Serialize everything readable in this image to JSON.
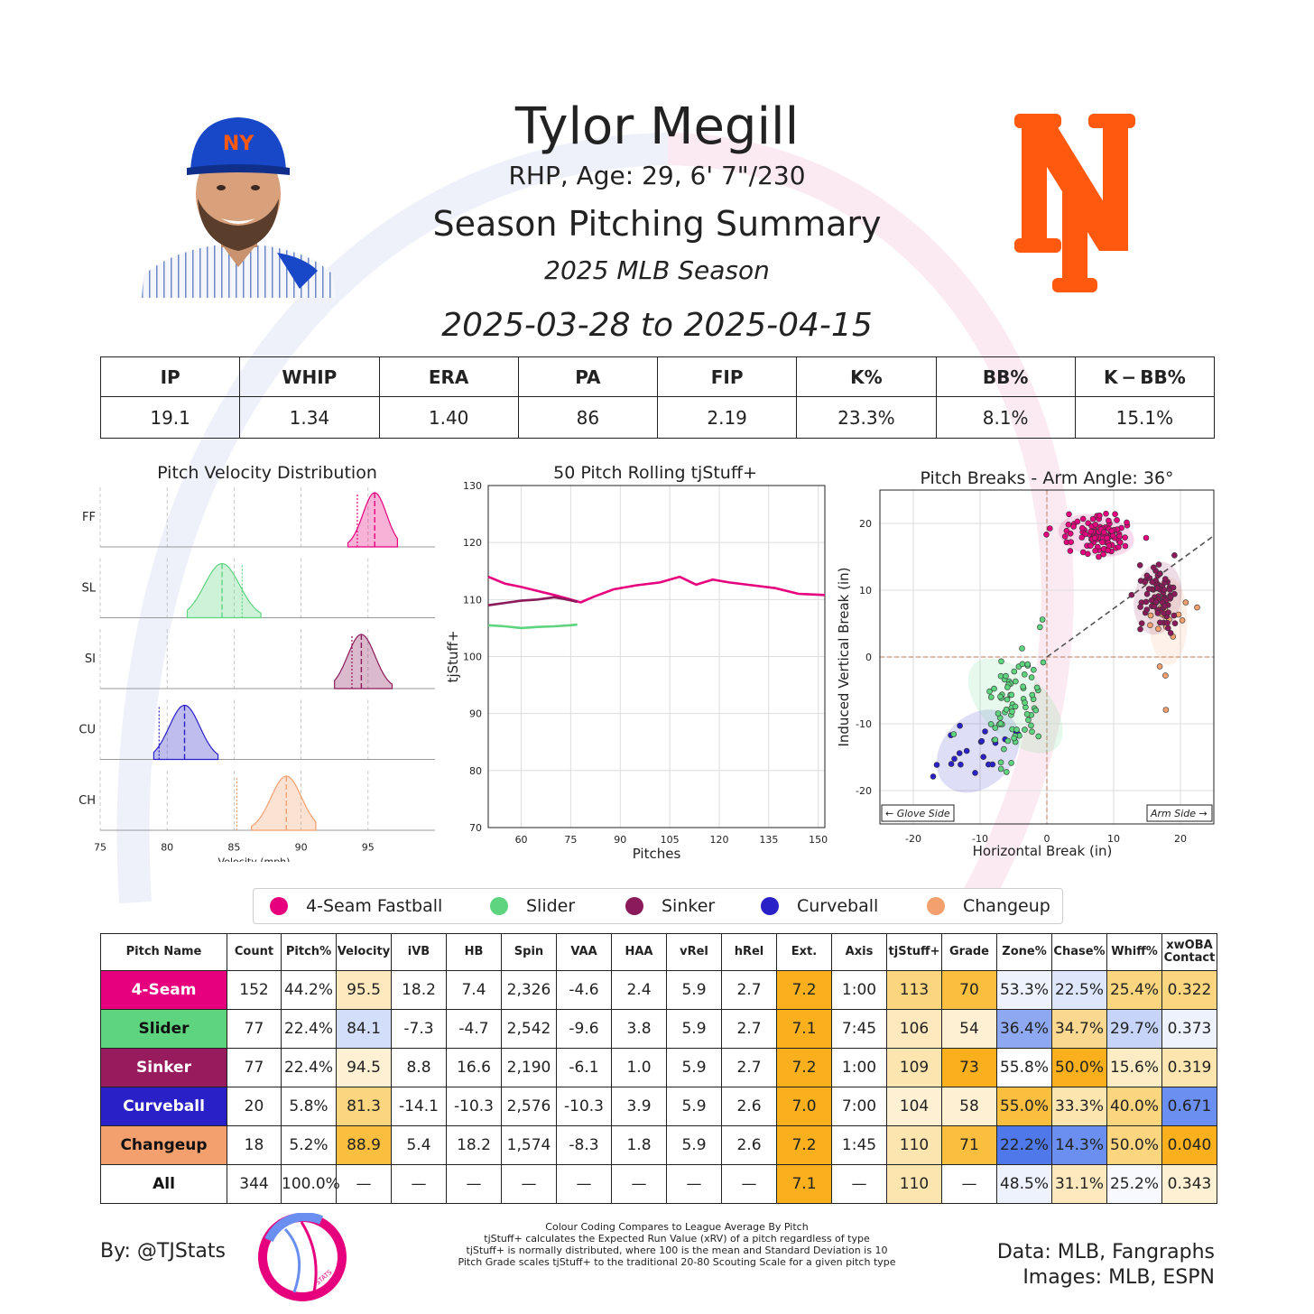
{
  "header": {
    "name": "Tylor Megill",
    "bio": "RHP, Age: 29, 6' 7\"/230",
    "summary_title": "Season Pitching Summary",
    "season": "2025 MLB Season",
    "date_range": "2025-03-28 to 2025-04-15"
  },
  "summary_stats": {
    "headers": [
      "IP",
      "WHIP",
      "ERA",
      "PA",
      "FIP",
      "K%",
      "BB%",
      "K − BB%"
    ],
    "values": [
      "19.1",
      "1.34",
      "1.40",
      "86",
      "2.19",
      "23.3%",
      "8.1%",
      "15.1%"
    ]
  },
  "chart_data": [
    {
      "type": "area",
      "title": "Pitch Velocity Distribution",
      "xlabel": "Velocity (mph)",
      "xlim": [
        75,
        100
      ],
      "xticks": [
        75,
        80,
        85,
        90,
        95
      ],
      "series": [
        {
          "name": "FF",
          "mean": 95.5,
          "league_avg": 94.2,
          "min": 93.5,
          "max": 97.2,
          "color": "#e6007e"
        },
        {
          "name": "SL",
          "mean": 84.1,
          "league_avg": 85.6,
          "min": 81.5,
          "max": 87.0,
          "color": "#5ed47f"
        },
        {
          "name": "SI",
          "mean": 94.5,
          "league_avg": 93.8,
          "min": 92.5,
          "max": 96.8,
          "color": "#8b1a5a"
        },
        {
          "name": "CU",
          "mean": 81.3,
          "league_avg": 79.4,
          "min": 79.0,
          "max": 83.8,
          "color": "#2a20c8"
        },
        {
          "name": "CH",
          "mean": 88.9,
          "league_avg": 85.2,
          "min": 86.3,
          "max": 91.1,
          "color": "#f4a06e"
        }
      ]
    },
    {
      "type": "line",
      "title": "50 Pitch Rolling tjStuff+",
      "xlabel": "Pitches",
      "ylabel": "tjStuff+",
      "xlim": [
        50,
        152
      ],
      "ylim": [
        70,
        130
      ],
      "xticks": [
        60,
        75,
        90,
        105,
        120,
        135,
        150
      ],
      "yticks": [
        70,
        80,
        90,
        100,
        110,
        120,
        130
      ],
      "series": [
        {
          "name": "4-Seam Fastball",
          "color": "#e6007e",
          "x": [
            50,
            55,
            60,
            65,
            70,
            75,
            78,
            82,
            88,
            95,
            102,
            108,
            113,
            118,
            123,
            130,
            137,
            144,
            152
          ],
          "y": [
            114.0,
            112.8,
            112.2,
            111.5,
            110.8,
            110.0,
            109.5,
            110.5,
            111.8,
            112.5,
            113.0,
            114.0,
            112.6,
            113.5,
            113.0,
            112.5,
            112.0,
            111.0,
            110.8
          ]
        },
        {
          "name": "Sinker",
          "color": "#8b1a5a",
          "x": [
            50,
            55,
            60,
            65,
            70,
            73,
            77
          ],
          "y": [
            109.0,
            109.4,
            109.8,
            110.0,
            110.4,
            110.1,
            109.6
          ]
        },
        {
          "name": "Slider",
          "color": "#5ed47f",
          "x": [
            50,
            55,
            60,
            65,
            70,
            75,
            77
          ],
          "y": [
            105.5,
            105.3,
            105.0,
            105.2,
            105.3,
            105.5,
            105.6
          ]
        }
      ]
    },
    {
      "type": "scatter",
      "title": "Pitch Breaks - Arm Angle: 36°",
      "xlabel": "Horizontal Break (in)",
      "ylabel": "Induced Vertical Break (in)",
      "xlim": [
        -25,
        25
      ],
      "ylim": [
        -25,
        25
      ],
      "xticks": [
        -20,
        -10,
        0,
        10,
        20
      ],
      "yticks": [
        -20,
        -10,
        0,
        10,
        20
      ],
      "arm_angle_deg": 36,
      "side_labels": {
        "left": "← Glove Side",
        "right": "Arm Side →"
      },
      "series": [
        {
          "name": "4-Seam Fastball",
          "color": "#e6007e",
          "center": [
            7.4,
            18.2
          ],
          "count": 152
        },
        {
          "name": "Slider",
          "color": "#5ed47f",
          "center": [
            -4.7,
            -7.3
          ],
          "count": 77
        },
        {
          "name": "Sinker",
          "color": "#8b1a5a",
          "center": [
            16.6,
            8.8
          ],
          "count": 77
        },
        {
          "name": "Curveball",
          "color": "#2a20c8",
          "center": [
            -10.3,
            -14.1
          ],
          "count": 20
        },
        {
          "name": "Changeup",
          "color": "#f4a06e",
          "center": [
            18.2,
            5.4
          ],
          "count": 18
        }
      ]
    }
  ],
  "legend": [
    {
      "label": "4-Seam Fastball",
      "color": "#e6007e"
    },
    {
      "label": "Slider",
      "color": "#5ed47f"
    },
    {
      "label": "Sinker",
      "color": "#8b1a5a"
    },
    {
      "label": "Curveball",
      "color": "#2a20c8"
    },
    {
      "label": "Changeup",
      "color": "#f4a06e"
    }
  ],
  "pitch_table": {
    "headers": [
      "Pitch Name",
      "Count",
      "Pitch%",
      "Velocity",
      "iVB",
      "HB",
      "Spin",
      "VAA",
      "HAA",
      "vRel",
      "hRel",
      "Ext.",
      "Axis",
      "tjStuff+",
      "Grade",
      "Zone%",
      "Chase%",
      "Whiff%",
      "xwOBA Contact"
    ],
    "rows": [
      {
        "name": "4-Seam",
        "name_bg": "#e6007e",
        "name_color": "#ffffff",
        "cells": [
          "152",
          "44.2%",
          "95.5",
          "18.2",
          "7.4",
          "2,326",
          "-4.6",
          "2.4",
          "5.9",
          "2.7",
          "7.2",
          "1:00",
          "113",
          "70",
          "53.3%",
          "22.5%",
          "25.4%",
          "0.322"
        ],
        "colors": [
          "#fff",
          "#fff",
          "#fde9bd",
          "#fff",
          "#fff",
          "#fff",
          "#fff",
          "#fff",
          "#fff",
          "#fff",
          "#f9b01c",
          "#fff",
          "#fcd57f",
          "#fbbf40",
          "#eef2fc",
          "#dde6fb",
          "#fcd57f",
          "#fcd57f"
        ]
      },
      {
        "name": "Slider",
        "name_bg": "#5ed47f",
        "name_color": "#111111",
        "cells": [
          "77",
          "22.4%",
          "84.1",
          "-7.3",
          "-4.7",
          "2,542",
          "-9.6",
          "3.8",
          "5.9",
          "2.7",
          "7.1",
          "7:45",
          "106",
          "54",
          "36.4%",
          "34.7%",
          "29.7%",
          "0.373"
        ],
        "colors": [
          "#fff",
          "#fff",
          "#d2defa",
          "#fff",
          "#fff",
          "#fff",
          "#fff",
          "#fff",
          "#fff",
          "#fff",
          "#f9b01c",
          "#fff",
          "#fde9bd",
          "#fdf0d3",
          "#8ea9f2",
          "#fbd88f",
          "#c5d4f8",
          "#eef2fc"
        ]
      },
      {
        "name": "Sinker",
        "name_bg": "#981b5d",
        "name_color": "#ffffff",
        "cells": [
          "77",
          "22.4%",
          "94.5",
          "8.8",
          "16.6",
          "2,190",
          "-6.1",
          "1.0",
          "5.9",
          "2.7",
          "7.2",
          "1:00",
          "109",
          "73",
          "55.8%",
          "50.0%",
          "15.6%",
          "0.319"
        ],
        "colors": [
          "#fff",
          "#fff",
          "#fdf0d3",
          "#fff",
          "#fff",
          "#fff",
          "#fff",
          "#fff",
          "#fff",
          "#fff",
          "#f9b01c",
          "#fff",
          "#fde5b0",
          "#f9b01c",
          "#fff",
          "#f9b01c",
          "#fdecc4",
          "#fde5b0"
        ]
      },
      {
        "name": "Curveball",
        "name_bg": "#2a20c8",
        "name_color": "#ffffff",
        "cells": [
          "20",
          "5.8%",
          "81.3",
          "-14.1",
          "-10.3",
          "2,576",
          "-10.3",
          "3.9",
          "5.9",
          "2.6",
          "7.0",
          "7:00",
          "104",
          "58",
          "55.0%",
          "33.3%",
          "40.0%",
          "0.671"
        ],
        "colors": [
          "#fff",
          "#fff",
          "#fcd57f",
          "#fff",
          "#fff",
          "#fff",
          "#fff",
          "#fff",
          "#fff",
          "#fff",
          "#f9b01c",
          "#fff",
          "#fdf0d3",
          "#fdf0d3",
          "#fbbf40",
          "#fde5b0",
          "#fcd57f",
          "#6b8ff0"
        ]
      },
      {
        "name": "Changeup",
        "name_bg": "#f4a06e",
        "name_color": "#111111",
        "cells": [
          "18",
          "5.2%",
          "88.9",
          "5.4",
          "18.2",
          "1,574",
          "-8.3",
          "1.8",
          "5.9",
          "2.6",
          "7.2",
          "1:45",
          "110",
          "71",
          "22.2%",
          "14.3%",
          "50.0%",
          "0.040"
        ],
        "colors": [
          "#fff",
          "#fff",
          "#fbbf40",
          "#fff",
          "#fff",
          "#fff",
          "#fff",
          "#fff",
          "#fff",
          "#fff",
          "#f9b01c",
          "#fff",
          "#fde5b0",
          "#fbbf40",
          "#4f79ea",
          "#6b8ff0",
          "#fcd57f",
          "#f9b01c"
        ]
      },
      {
        "name": "All",
        "name_bg": "#ffffff",
        "name_color": "#111111",
        "cells": [
          "344",
          "100.0%",
          "—",
          "—",
          "—",
          "—",
          "—",
          "—",
          "—",
          "—",
          "7.1",
          "—",
          "110",
          "—",
          "48.5%",
          "31.1%",
          "25.2%",
          "0.343"
        ],
        "colors": [
          "#fff",
          "#fff",
          "#fff",
          "#fff",
          "#fff",
          "#fff",
          "#fff",
          "#fff",
          "#fff",
          "#fff",
          "#f9b01c",
          "#fff",
          "#fde5b0",
          "#fff",
          "#eef2fc",
          "#fde9bd",
          "#f7f9fe",
          "#fdf0d3"
        ]
      }
    ]
  },
  "footer": {
    "credit": "By: @TJStats",
    "notes": [
      "Colour Coding Compares to League Average By Pitch",
      "tjStuff+ calculates the Expected Run Value (xRV) of a pitch regardless of type",
      "tjStuff+ is normally distributed, where 100 is the mean and Standard Deviation is 10",
      "Pitch Grade scales tjStuff+ to the traditional 20-80 Scouting Scale for a given pitch type"
    ],
    "sources_data": "Data: MLB, Fangraphs",
    "sources_images": "Images: MLB, ESPN",
    "logo_text": "STATS"
  },
  "colors": {
    "mets_orange": "#ff5910",
    "mets_blue": "#002d72",
    "cap_blue": "#1848c8"
  }
}
